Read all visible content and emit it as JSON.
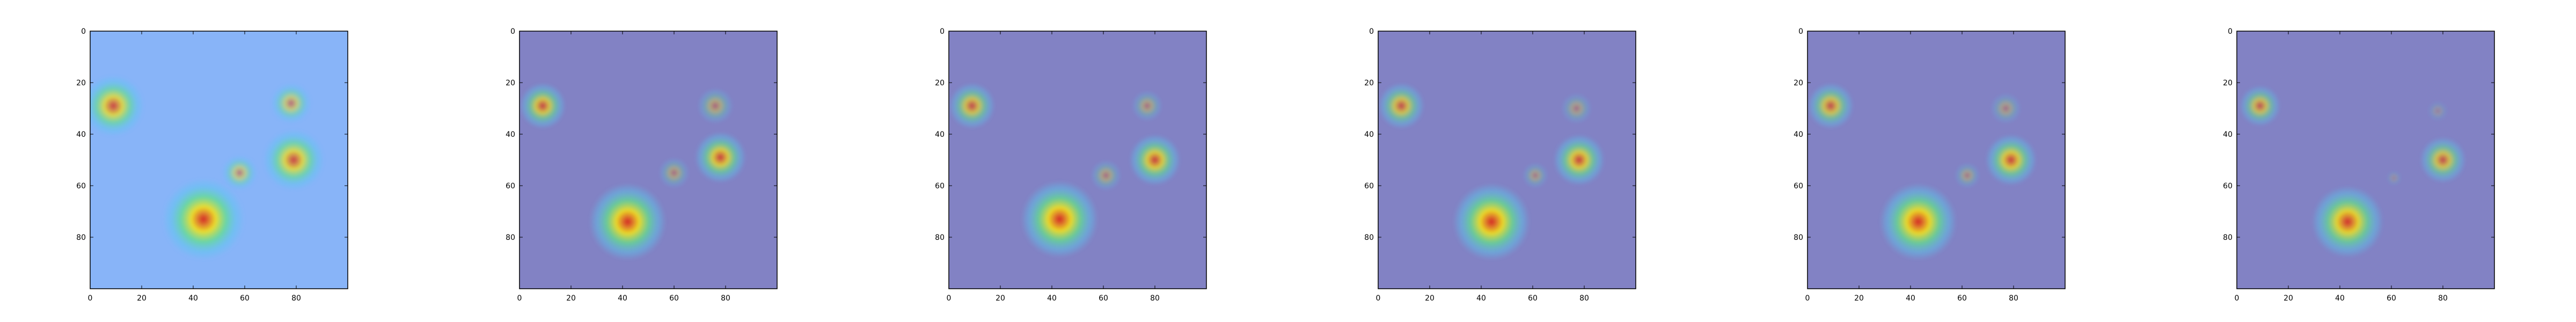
{
  "chart_data": {
    "type": "heatmap",
    "description_visible_text_only": true,
    "panels": [
      {
        "tint": "#88b4f8",
        "xticks": [
          0,
          20,
          40,
          60,
          80
        ],
        "yticks": [
          0,
          20,
          40,
          60,
          80
        ],
        "xlim": [
          0,
          100
        ],
        "ylim": [
          0,
          100
        ],
        "blobs": [
          {
            "x": 9,
            "y": 29,
            "r": 12,
            "intensity": 0.85
          },
          {
            "x": 78,
            "y": 28,
            "r": 8,
            "intensity": 0.6
          },
          {
            "x": 58,
            "y": 55,
            "r": 7,
            "intensity": 0.55
          },
          {
            "x": 79,
            "y": 50,
            "r": 12,
            "intensity": 0.85
          },
          {
            "x": 44,
            "y": 73,
            "r": 16,
            "intensity": 1.0
          }
        ]
      },
      {
        "tint": "#8282c4",
        "xticks": [
          0,
          20,
          40,
          60,
          80
        ],
        "yticks": [
          0,
          20,
          40,
          60,
          80
        ],
        "xlim": [
          0,
          100
        ],
        "ylim": [
          0,
          100
        ],
        "blobs": [
          {
            "x": 9,
            "y": 29,
            "r": 9,
            "intensity": 0.8
          },
          {
            "x": 76,
            "y": 29,
            "r": 7,
            "intensity": 0.45
          },
          {
            "x": 60,
            "y": 55,
            "r": 6,
            "intensity": 0.4
          },
          {
            "x": 78,
            "y": 49,
            "r": 10,
            "intensity": 0.85
          },
          {
            "x": 42,
            "y": 74,
            "r": 15,
            "intensity": 1.0
          }
        ]
      },
      {
        "tint": "#8282c4",
        "xticks": [
          0,
          20,
          40,
          60,
          80
        ],
        "yticks": [
          0,
          20,
          40,
          60,
          80
        ],
        "xlim": [
          0,
          100
        ],
        "ylim": [
          0,
          100
        ],
        "blobs": [
          {
            "x": 9,
            "y": 29,
            "r": 9,
            "intensity": 0.75
          },
          {
            "x": 77,
            "y": 29,
            "r": 6,
            "intensity": 0.4
          },
          {
            "x": 61,
            "y": 56,
            "r": 6,
            "intensity": 0.4
          },
          {
            "x": 80,
            "y": 50,
            "r": 10,
            "intensity": 0.85
          },
          {
            "x": 43,
            "y": 73,
            "r": 15,
            "intensity": 1.0
          }
        ]
      },
      {
        "tint": "#8282c4",
        "xticks": [
          0,
          20,
          40,
          60,
          80
        ],
        "yticks": [
          0,
          20,
          40,
          60,
          80
        ],
        "xlim": [
          0,
          100
        ],
        "ylim": [
          0,
          100
        ],
        "blobs": [
          {
            "x": 9,
            "y": 29,
            "r": 9,
            "intensity": 0.75
          },
          {
            "x": 77,
            "y": 30,
            "r": 6,
            "intensity": 0.35
          },
          {
            "x": 61,
            "y": 56,
            "r": 5,
            "intensity": 0.35
          },
          {
            "x": 78,
            "y": 50,
            "r": 10,
            "intensity": 0.85
          },
          {
            "x": 44,
            "y": 74,
            "r": 15,
            "intensity": 1.0
          }
        ]
      },
      {
        "tint": "#8282c4",
        "xticks": [
          0,
          20,
          40,
          60,
          80
        ],
        "yticks": [
          0,
          20,
          40,
          60,
          80
        ],
        "xlim": [
          0,
          100
        ],
        "ylim": [
          0,
          100
        ],
        "blobs": [
          {
            "x": 9,
            "y": 29,
            "r": 9,
            "intensity": 0.75
          },
          {
            "x": 77,
            "y": 30,
            "r": 6,
            "intensity": 0.35
          },
          {
            "x": 62,
            "y": 56,
            "r": 5,
            "intensity": 0.35
          },
          {
            "x": 79,
            "y": 50,
            "r": 10,
            "intensity": 0.85
          },
          {
            "x": 43,
            "y": 74,
            "r": 15,
            "intensity": 1.0
          }
        ]
      },
      {
        "tint": "#8282c4",
        "xticks": [
          0,
          20,
          40,
          60,
          80
        ],
        "yticks": [
          0,
          20,
          40,
          60,
          80
        ],
        "xlim": [
          0,
          100
        ],
        "ylim": [
          0,
          100
        ],
        "blobs": [
          {
            "x": 9,
            "y": 29,
            "r": 8,
            "intensity": 0.7
          },
          {
            "x": 78,
            "y": 31,
            "r": 4,
            "intensity": 0.2
          },
          {
            "x": 61,
            "y": 57,
            "r": 3,
            "intensity": 0.2
          },
          {
            "x": 80,
            "y": 50,
            "r": 9,
            "intensity": 0.75
          },
          {
            "x": 43,
            "y": 74,
            "r": 14,
            "intensity": 0.95
          }
        ]
      }
    ]
  }
}
